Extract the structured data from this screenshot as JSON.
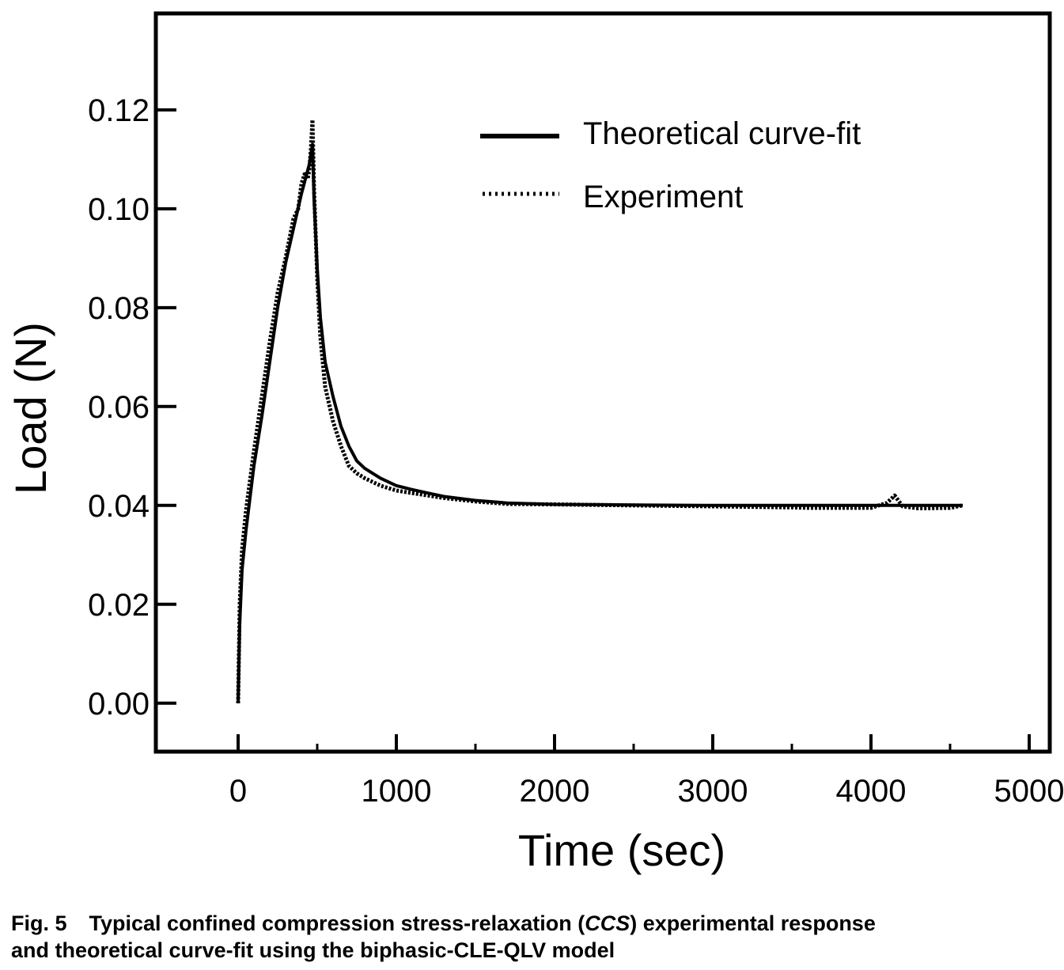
{
  "chart_data": {
    "type": "line",
    "xlabel": "Time (sec)",
    "ylabel": "Load (N)",
    "xlim": [
      -520,
      5130
    ],
    "ylim": [
      -0.0098,
      0.1395
    ],
    "x_ticks": [
      0,
      1000,
      2000,
      3000,
      4000,
      5000
    ],
    "x_tick_labels": [
      "0",
      "1000",
      "2000",
      "3000",
      "4000",
      "5000"
    ],
    "y_ticks": [
      0.0,
      0.02,
      0.04,
      0.06,
      0.08,
      0.1,
      0.12
    ],
    "y_tick_labels": [
      "0.00",
      "0.02",
      "0.04",
      "0.06",
      "0.08",
      "0.10",
      "0.12"
    ],
    "grid": false,
    "legend_position": "top-right",
    "series": [
      {
        "name": "Theoretical curve-fit",
        "style": "solid",
        "x": [
          0,
          10,
          25,
          50,
          100,
          150,
          200,
          250,
          300,
          350,
          400,
          450,
          460,
          470,
          480,
          500,
          520,
          550,
          600,
          650,
          700,
          750,
          800,
          900,
          1000,
          1100,
          1200,
          1300,
          1500,
          1700,
          2000,
          2500,
          3000,
          3500,
          4000,
          4500,
          4580
        ],
        "y": [
          0.0,
          0.016,
          0.027,
          0.035,
          0.048,
          0.058,
          0.069,
          0.08,
          0.089,
          0.096,
          0.103,
          0.109,
          0.111,
          0.113,
          0.102,
          0.088,
          0.078,
          0.069,
          0.062,
          0.056,
          0.052,
          0.049,
          0.0475,
          0.0455,
          0.044,
          0.0432,
          0.0425,
          0.0418,
          0.041,
          0.0405,
          0.0402,
          0.0401,
          0.04,
          0.04,
          0.04,
          0.04,
          0.04
        ]
      },
      {
        "name": "Experiment",
        "style": "dotted",
        "x": [
          0,
          10,
          25,
          50,
          100,
          150,
          200,
          250,
          300,
          350,
          380,
          400,
          420,
          440,
          450,
          460,
          470,
          480,
          500,
          520,
          550,
          600,
          650,
          700,
          750,
          800,
          900,
          1000,
          1100,
          1200,
          1300,
          1500,
          1700,
          2000,
          2500,
          3000,
          3500,
          3600,
          4000,
          4100,
          4150,
          4200,
          4300,
          4500,
          4580
        ],
        "y": [
          0.0,
          0.02,
          0.031,
          0.039,
          0.051,
          0.062,
          0.073,
          0.083,
          0.09,
          0.098,
          0.1,
          0.105,
          0.107,
          0.106,
          0.108,
          0.112,
          0.118,
          0.104,
          0.086,
          0.074,
          0.064,
          0.057,
          0.052,
          0.048,
          0.0465,
          0.0455,
          0.044,
          0.043,
          0.0425,
          0.042,
          0.0415,
          0.0408,
          0.0403,
          0.0402,
          0.04,
          0.0398,
          0.0396,
          0.0395,
          0.0395,
          0.0405,
          0.042,
          0.0398,
          0.0394,
          0.0395,
          0.04
        ]
      }
    ]
  },
  "caption": {
    "fig_label": "Fig. 5",
    "line1_before": "Typical confined compression stress-relaxation (",
    "line1_abbr": "CCS",
    "line1_after": ") experimental response",
    "line2": "and theoretical curve-fit using the biphasic-CLE-QLV model"
  }
}
